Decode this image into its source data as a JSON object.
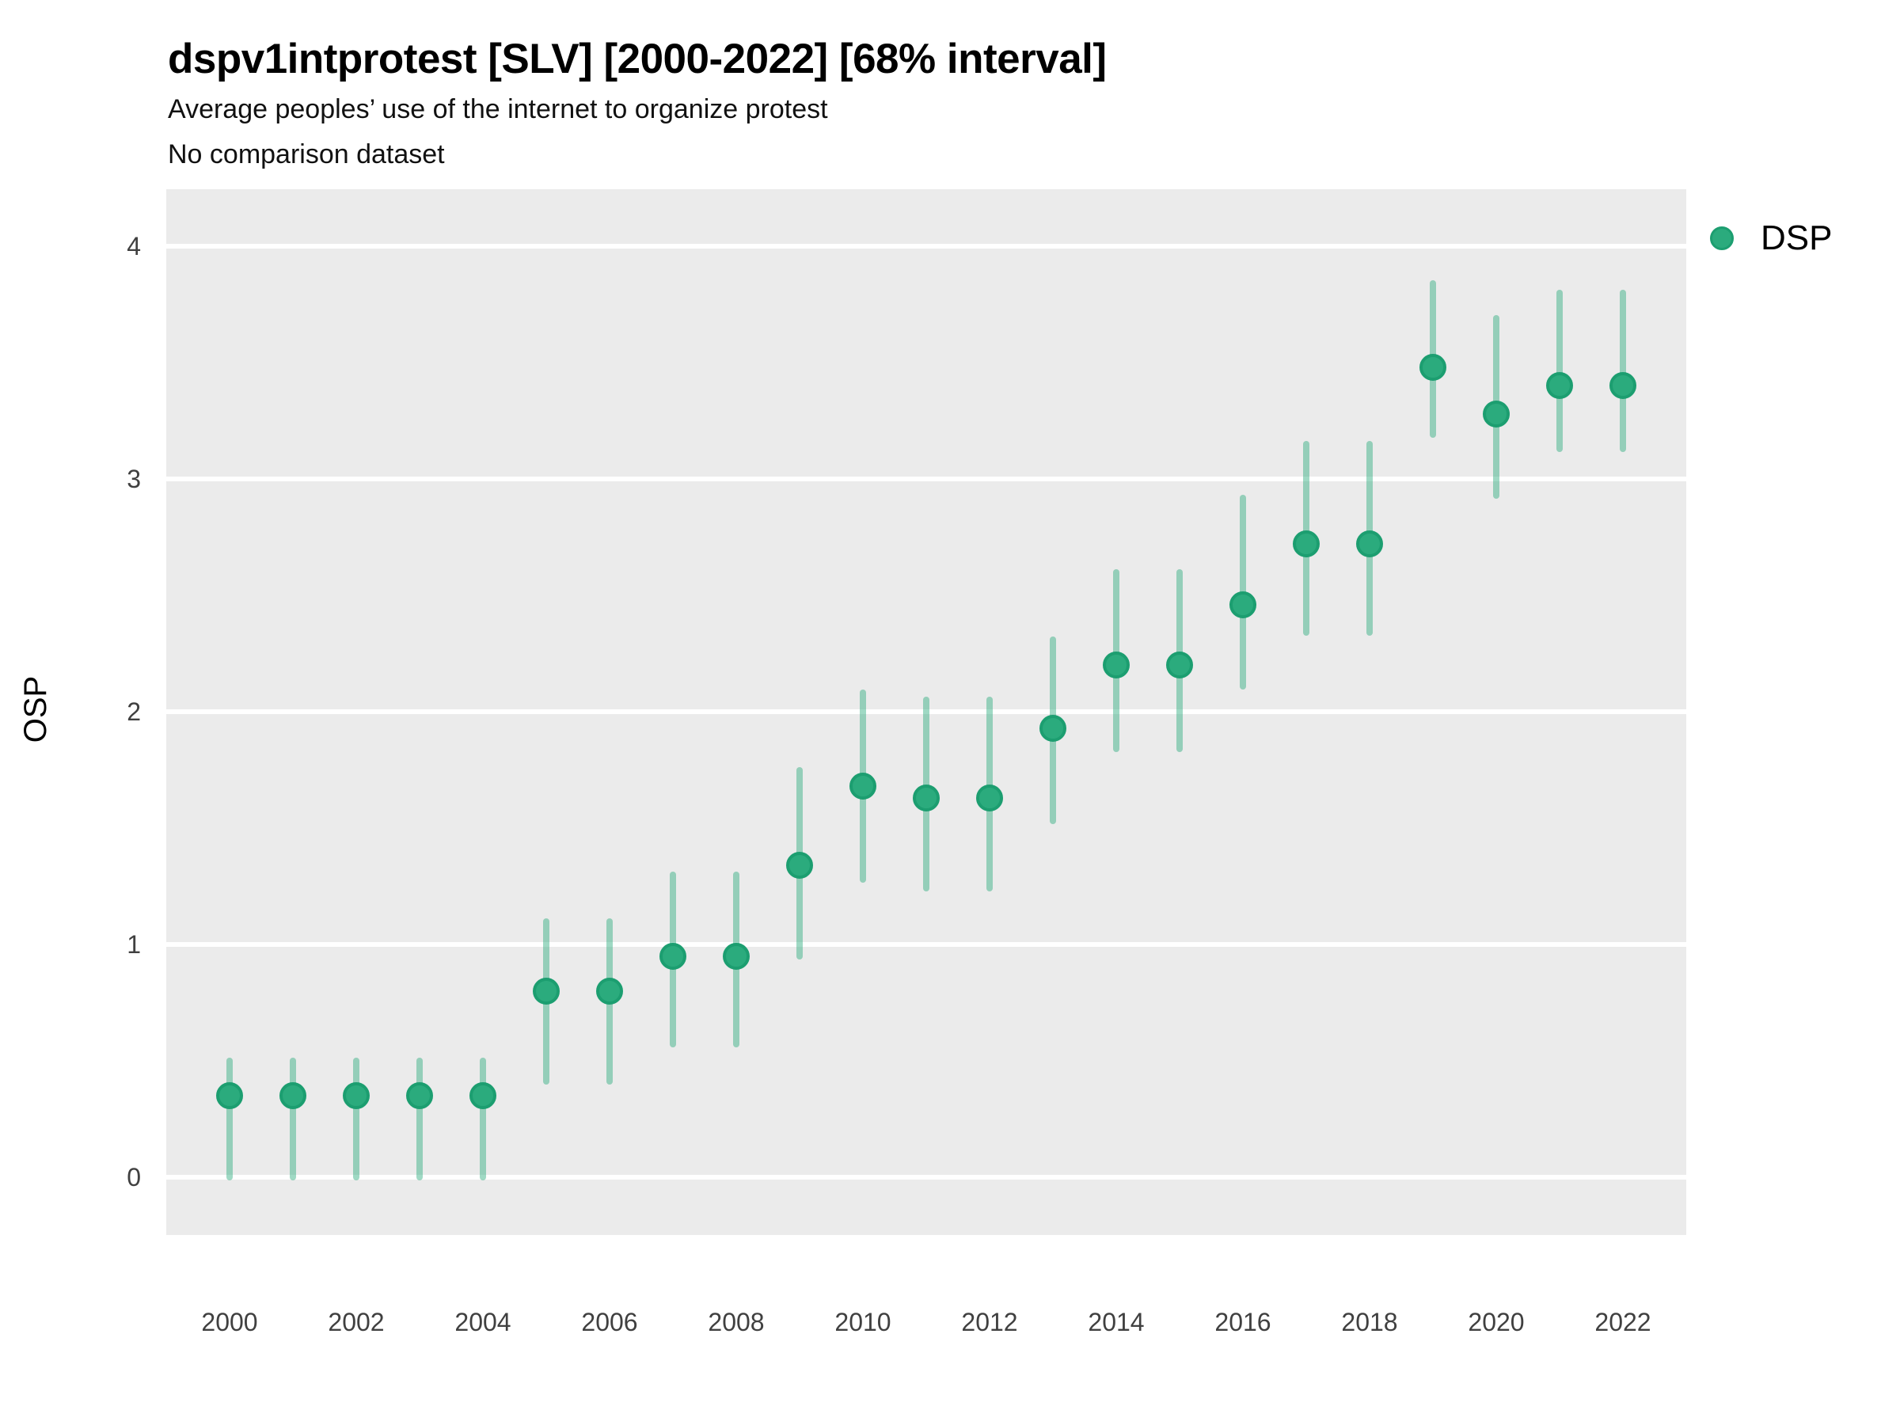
{
  "title": "dspv1intprotest [SLV] [2000-2022] [68% interval]",
  "subtitle": "Average peoples’ use of the internet to organize protest",
  "note": "No comparison dataset",
  "legend": {
    "label": "DSP"
  },
  "style": {
    "panel_background": "#EBEBEB",
    "gridline_color": "#FFFFFF",
    "point_fill": "#2BAB7D",
    "point_border": "#1C9E70",
    "interval_color_rgb": "43,171,125",
    "interval_alpha": 0.45,
    "tick_label_color": "#404040"
  },
  "chart_data": {
    "type": "scatter",
    "subtype": "pointrange",
    "title": "dspv1intprotest [SLV] [2000-2022] [68% interval]",
    "subtitle": "Average peoples’ use of the internet to organize protest",
    "note": "No comparison dataset",
    "xlabel": "",
    "ylabel": "OSP",
    "interval_label": "68% interval",
    "legend_position": "right-top",
    "grid": "major horizontal white lines on gray panel",
    "xlim": [
      1999,
      2023
    ],
    "ylim": [
      0,
      4
    ],
    "xticks": [
      2000,
      2002,
      2004,
      2006,
      2008,
      2010,
      2012,
      2014,
      2016,
      2018,
      2020,
      2022
    ],
    "yticks": [
      0,
      1,
      2,
      3,
      4
    ],
    "series": [
      {
        "name": "DSP",
        "points": [
          {
            "year": 2000,
            "value": 0.35,
            "lo": 0.0,
            "hi": 0.5
          },
          {
            "year": 2001,
            "value": 0.35,
            "lo": 0.0,
            "hi": 0.5
          },
          {
            "year": 2002,
            "value": 0.35,
            "lo": 0.0,
            "hi": 0.5
          },
          {
            "year": 2003,
            "value": 0.35,
            "lo": 0.0,
            "hi": 0.5
          },
          {
            "year": 2004,
            "value": 0.35,
            "lo": 0.0,
            "hi": 0.5
          },
          {
            "year": 2005,
            "value": 0.8,
            "lo": 0.41,
            "hi": 1.1
          },
          {
            "year": 2006,
            "value": 0.8,
            "lo": 0.41,
            "hi": 1.1
          },
          {
            "year": 2007,
            "value": 0.95,
            "lo": 0.57,
            "hi": 1.3
          },
          {
            "year": 2008,
            "value": 0.95,
            "lo": 0.57,
            "hi": 1.3
          },
          {
            "year": 2009,
            "value": 1.34,
            "lo": 0.95,
            "hi": 1.75
          },
          {
            "year": 2010,
            "value": 1.68,
            "lo": 1.28,
            "hi": 2.08
          },
          {
            "year": 2011,
            "value": 1.63,
            "lo": 1.24,
            "hi": 2.05
          },
          {
            "year": 2012,
            "value": 1.63,
            "lo": 1.24,
            "hi": 2.05
          },
          {
            "year": 2013,
            "value": 1.93,
            "lo": 1.53,
            "hi": 2.31
          },
          {
            "year": 2014,
            "value": 2.2,
            "lo": 1.84,
            "hi": 2.6
          },
          {
            "year": 2015,
            "value": 2.2,
            "lo": 1.84,
            "hi": 2.6
          },
          {
            "year": 2016,
            "value": 2.46,
            "lo": 2.11,
            "hi": 2.92
          },
          {
            "year": 2017,
            "value": 2.72,
            "lo": 2.34,
            "hi": 3.15
          },
          {
            "year": 2018,
            "value": 2.72,
            "lo": 2.34,
            "hi": 3.15
          },
          {
            "year": 2019,
            "value": 3.48,
            "lo": 3.19,
            "hi": 3.84
          },
          {
            "year": 2020,
            "value": 3.28,
            "lo": 2.93,
            "hi": 3.69
          },
          {
            "year": 2021,
            "value": 3.4,
            "lo": 3.13,
            "hi": 3.8
          },
          {
            "year": 2022,
            "value": 3.4,
            "lo": 3.13,
            "hi": 3.8
          }
        ]
      }
    ]
  }
}
